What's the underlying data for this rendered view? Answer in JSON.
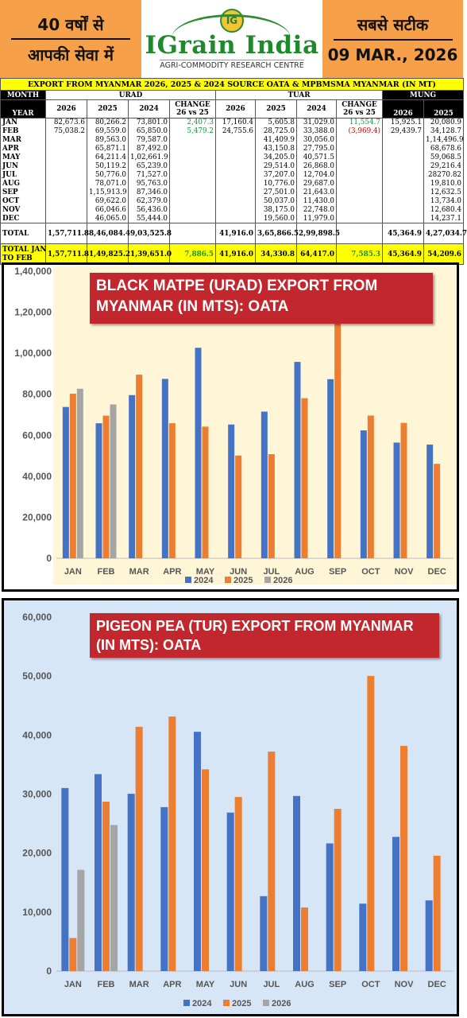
{
  "header": {
    "left_line1": "40 वर्षों से",
    "left_line2": "आपकी सेवा में",
    "brand": "IGrain India",
    "brand_sub": "AGRI-COMMODITY RESEARCH CENTRE",
    "logo_letter": "IG",
    "right_line1": "सबसे सटीक",
    "right_line2": "09 MAR., 2026"
  },
  "table": {
    "title": "EXPORT FROM MYANMAR 2026, 2025 & 2024 SOURCE OATA & MPBMSMA MYANMAR (IN MT)",
    "month_label": "MONTH",
    "year_label": "YEAR",
    "groups": [
      "URAD",
      "TUAR",
      "MUNG"
    ],
    "urad_cols": [
      "2026",
      "2025",
      "2024",
      "CHANGE 26 vs 25"
    ],
    "tuar_cols": [
      "2026",
      "2025",
      "2024",
      "CHANGE 26 vs 25"
    ],
    "mung_cols": [
      "2026",
      "2025"
    ],
    "rows": [
      {
        "m": "JAN",
        "u26": "82,673.6",
        "u25": "80,266.2",
        "u24": "73,801.0",
        "uch": "2,407.3",
        "t26": "17,160.4",
        "t25": "5,605.8",
        "t24": "31,029.0",
        "tch": "11,554.7",
        "m26": "15,925.1",
        "m25": "20,080.9"
      },
      {
        "m": "FEB",
        "u26": "75,038.2",
        "u25": "69,559.0",
        "u24": "65,850.0",
        "uch": "5,479.2",
        "t26": "24,755.6",
        "t25": "28,725.0",
        "t24": "33,388.0",
        "tch": "(3,969.4)",
        "m26": "29,439.7",
        "m25": "34,128.7"
      },
      {
        "m": "MAR",
        "u26": "",
        "u25": "89,563.0",
        "u24": "79,587.0",
        "uch": "",
        "t26": "",
        "t25": "41,409.9",
        "t24": "30,056.0",
        "tch": "",
        "m26": "",
        "m25": "1,14,496.9"
      },
      {
        "m": "APR",
        "u26": "",
        "u25": "65,871.1",
        "u24": "87,492.0",
        "uch": "",
        "t26": "",
        "t25": "43,150.8",
        "t24": "27,795.0",
        "tch": "",
        "m26": "",
        "m25": "68,678.6"
      },
      {
        "m": "MAY",
        "u26": "",
        "u25": "64,211.4",
        "u24": "1,02,661.9",
        "uch": "",
        "t26": "",
        "t25": "34,205.0",
        "t24": "40,571.5",
        "tch": "",
        "m26": "",
        "m25": "59,068.5"
      },
      {
        "m": "JUN",
        "u26": "",
        "u25": "50,119.2",
        "u24": "65,239.0",
        "uch": "",
        "t26": "",
        "t25": "29,514.0",
        "t24": "26,868.0",
        "tch": "",
        "m26": "",
        "m25": "29,216.4"
      },
      {
        "m": "JUL",
        "u26": "",
        "u25": "50,776.0",
        "u24": "71,527.0",
        "uch": "",
        "t26": "",
        "t25": "37,207.0",
        "t24": "12,704.0",
        "tch": "",
        "m26": "",
        "m25": "28270.82"
      },
      {
        "m": "AUG",
        "u26": "",
        "u25": "78,071.0",
        "u24": "95,763.0",
        "uch": "",
        "t26": "",
        "t25": "10,776.0",
        "t24": "29,687.0",
        "tch": "",
        "m26": "",
        "m25": "19,810.0"
      },
      {
        "m": "SEP",
        "u26": "",
        "u25": "1,15,913.9",
        "u24": "87,346.0",
        "uch": "",
        "t26": "",
        "t25": "27,501.0",
        "t24": "21,643.0",
        "tch": "",
        "m26": "",
        "m25": "12,632.5"
      },
      {
        "m": "OCT",
        "u26": "",
        "u25": "69,622.0",
        "u24": "62,379.0",
        "uch": "",
        "t26": "",
        "t25": "50,037.0",
        "t24": "11,430.0",
        "tch": "",
        "m26": "",
        "m25": "13,734.0"
      },
      {
        "m": "NOV",
        "u26": "",
        "u25": "66,046.6",
        "u24": "56,436.0",
        "uch": "",
        "t26": "",
        "t25": "38,175.0",
        "t24": "22,748.0",
        "tch": "",
        "m26": "",
        "m25": "12,680.4"
      },
      {
        "m": "DEC",
        "u26": "",
        "u25": "46,065.0",
        "u24": "55,444.0",
        "uch": "",
        "t26": "",
        "t25": "19,560.0",
        "t24": "11,979.0",
        "tch": "",
        "m26": "",
        "m25": "14,237.1"
      }
    ],
    "total": {
      "label": "TOTAL",
      "u26": "1,57,711.8",
      "u25": "8,46,084.4",
      "u24": "9,03,525.8",
      "uch": "",
      "t26": "41,916.0",
      "t25": "3,65,866.5",
      "t24": "2,99,898.5",
      "tch": "",
      "m26": "45,364.9",
      "m25": "4,27,034.7"
    },
    "jan_feb": {
      "label1": "TOTAL JAN",
      "label2": "TO FEB",
      "u26": "1,57,711.8",
      "u25": "1,49,825.2",
      "u24": "1,39,651.0",
      "uch": "7,886.5",
      "t26": "41,916.0",
      "t25": "34,330.8",
      "t24": "64,417.0",
      "tch": "7,585.3",
      "m26": "45,364.9",
      "m25": "54,209.6"
    }
  },
  "colors": {
    "s2024": "#4472c4",
    "s2025": "#ed7d31",
    "s2026": "#a5a5a5",
    "title_bg": "#c1272d",
    "table_title_bg": "#ffff00",
    "header_orange": "#f6a04a"
  },
  "chart_data": [
    {
      "type": "bar",
      "title": "BLACK MATPE (URAD) EXPORT FROM MYANMAR (IN MTS): OATA",
      "categories": [
        "JAN",
        "FEB",
        "MAR",
        "APR",
        "MAY",
        "JUN",
        "JUL",
        "AUG",
        "SEP",
        "OCT",
        "NOV",
        "DEC"
      ],
      "ylim": [
        0,
        140000
      ],
      "yticks": [
        0,
        20000,
        40000,
        60000,
        80000,
        100000,
        120000,
        140000
      ],
      "ytick_labels": [
        "0",
        "20,000",
        "40,000",
        "60,000",
        "80,000",
        "1,00,000",
        "1,20,000",
        "1,40,000"
      ],
      "legend": "bottom",
      "series": [
        {
          "name": "2024",
          "values": [
            73801.0,
            65850.0,
            79587.0,
            87492.0,
            102661.9,
            65239.0,
            71527.0,
            95763.0,
            87346.0,
            62379.0,
            56436.0,
            55444.0
          ]
        },
        {
          "name": "2025",
          "values": [
            80266.2,
            69559.0,
            89563.0,
            65871.1,
            64211.4,
            50119.2,
            50776.0,
            78071.0,
            115913.9,
            69622.0,
            66046.6,
            46065.0
          ]
        },
        {
          "name": "2026",
          "values": [
            82673.6,
            75038.2,
            null,
            null,
            null,
            null,
            null,
            null,
            null,
            null,
            null,
            null
          ]
        }
      ]
    },
    {
      "type": "bar",
      "title": "PIGEON PEA (TUR) EXPORT FROM MYANMAR (IN MTS): OATA",
      "categories": [
        "JAN",
        "FEB",
        "MAR",
        "APR",
        "MAY",
        "JUN",
        "JUL",
        "AUG",
        "SEP",
        "OCT",
        "NOV",
        "DEC"
      ],
      "ylim": [
        0,
        60000
      ],
      "yticks": [
        0,
        10000,
        20000,
        30000,
        40000,
        50000,
        60000
      ],
      "ytick_labels": [
        "0",
        "10,000",
        "20,000",
        "30,000",
        "40,000",
        "50,000",
        "60,000"
      ],
      "legend": "bottom",
      "series": [
        {
          "name": "2024",
          "values": [
            31029.0,
            33388.0,
            30056.0,
            27795.0,
            40571.5,
            26868.0,
            12704.0,
            29687.0,
            21643.0,
            11430.0,
            22748.0,
            11979.0
          ]
        },
        {
          "name": "2025",
          "values": [
            5605.8,
            28725.0,
            41409.9,
            43150.8,
            34205.0,
            29514.0,
            37207.0,
            10776.0,
            27501.0,
            50037.0,
            38175.0,
            19560.0
          ]
        },
        {
          "name": "2026",
          "values": [
            17160.4,
            24755.6,
            null,
            null,
            null,
            null,
            null,
            null,
            null,
            null,
            null,
            null
          ]
        }
      ]
    }
  ]
}
